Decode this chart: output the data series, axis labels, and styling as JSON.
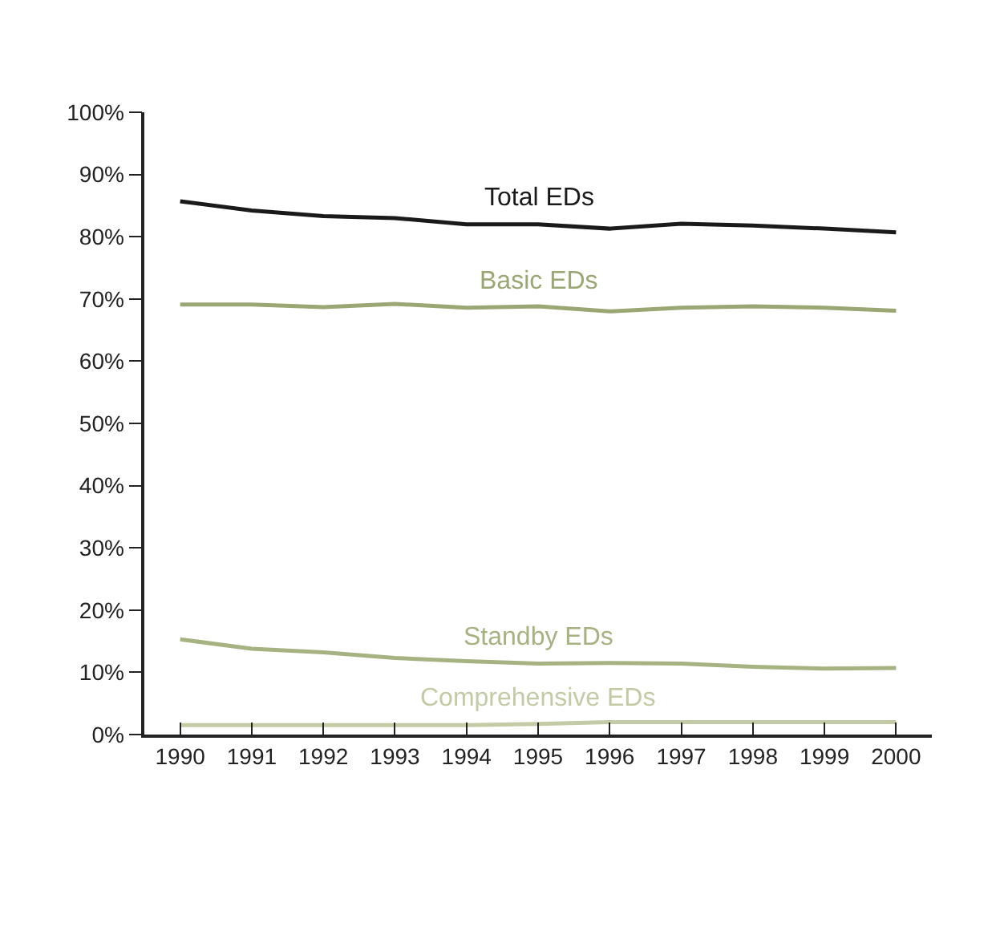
{
  "chart_data": {
    "type": "line",
    "x": [
      1990,
      1991,
      1992,
      1993,
      1994,
      1995,
      1996,
      1997,
      1998,
      1999,
      2000
    ],
    "series": [
      {
        "name": "Total EDs",
        "color": "#1a1a1a",
        "values": [
          85.7,
          84.2,
          83.3,
          83.0,
          82.0,
          82.0,
          81.3,
          82.1,
          81.8,
          81.3,
          80.7
        ]
      },
      {
        "name": "Basic EDs",
        "color": "#9aa673",
        "values": [
          69.1,
          69.1,
          68.7,
          69.2,
          68.6,
          68.8,
          68.0,
          68.6,
          68.8,
          68.6,
          68.1
        ]
      },
      {
        "name": "Standby EDs",
        "color": "#a7b283",
        "values": [
          15.3,
          13.8,
          13.2,
          12.3,
          11.8,
          11.4,
          11.5,
          11.4,
          10.9,
          10.6,
          10.7
        ]
      },
      {
        "name": "Comprehensive EDs",
        "color": "#c2cba6",
        "values": [
          1.5,
          1.5,
          1.5,
          1.5,
          1.5,
          1.7,
          2.0,
          2.0,
          2.0,
          2.0,
          2.0
        ]
      }
    ],
    "xlim": [
      1989.5,
      2000.5
    ],
    "xticks": [
      1990,
      1991,
      1992,
      1993,
      1994,
      1995,
      1996,
      1997,
      1998,
      1999,
      2000
    ],
    "ylim": [
      0,
      100
    ],
    "yticks": [
      {
        "value": 0,
        "label": "0%"
      },
      {
        "value": 10,
        "label": "10%"
      },
      {
        "value": 20,
        "label": "20%"
      },
      {
        "value": 30,
        "label": "30%"
      },
      {
        "value": 40,
        "label": "40%"
      },
      {
        "value": 50,
        "label": "50%"
      },
      {
        "value": 60,
        "label": "60%"
      },
      {
        "value": 70,
        "label": "70%"
      },
      {
        "value": 80,
        "label": "80%"
      },
      {
        "value": 90,
        "label": "90%"
      },
      {
        "value": 100,
        "label": "100%"
      }
    ],
    "grid": false,
    "legend": false,
    "marker": "none",
    "line_style": "solid"
  }
}
